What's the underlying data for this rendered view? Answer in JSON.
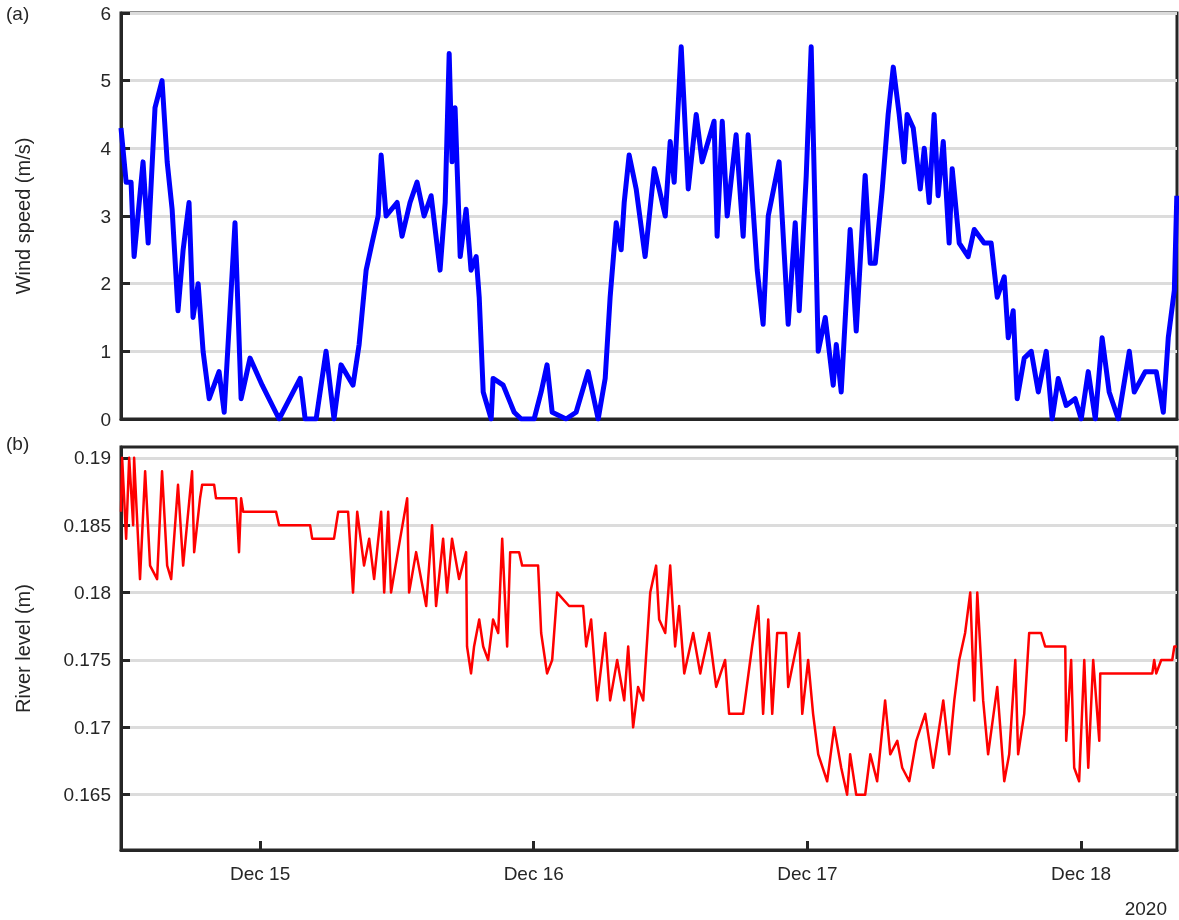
{
  "chart_data": [
    {
      "type": "line",
      "ylabel": "Wind speed (m/s)",
      "annotations": [
        "(a)"
      ],
      "color": "#0000ff",
      "grid": "y",
      "tick_labels": "y",
      "xlim": [
        "2020-12-14T11:48",
        "2020-12-18T08:25"
      ],
      "ylim": [
        0,
        6
      ],
      "yticks": [
        0,
        1,
        2,
        3,
        4,
        5,
        6
      ],
      "x": [
        "2020-12-14T11:48",
        "2020-12-14T12:15",
        "2020-12-14T12:41",
        "2020-12-14T12:57",
        "2020-12-14T13:44",
        "2020-12-14T14:11",
        "2020-12-14T14:47",
        "2020-12-14T15:24",
        "2020-12-14T15:51",
        "2020-12-14T16:17",
        "2020-12-14T16:48",
        "2020-12-14T17:15",
        "2020-12-14T17:46",
        "2020-12-14T18:07",
        "2020-12-14T18:34",
        "2020-12-14T19:00",
        "2020-12-14T19:32",
        "2020-12-14T20:24",
        "2020-12-14T20:51",
        "2020-12-14T21:48",
        "2020-12-14T22:20",
        "2020-12-14T23:07",
        "2020-12-15T00:11",
        "2020-12-15T01:40",
        "2020-12-15T02:54",
        "2020-12-15T03:31",
        "2020-12-15T03:57",
        "2020-12-15T04:55",
        "2020-12-15T05:47",
        "2020-12-15T06:29",
        "2020-12-15T07:06",
        "2020-12-15T08:09",
        "2020-12-15T08:41",
        "2020-12-15T09:18",
        "2020-12-15T09:49",
        "2020-12-15T10:21",
        "2020-12-15T10:37",
        "2020-12-15T11:03",
        "2020-12-15T12:01",
        "2020-12-15T12:27",
        "2020-12-15T13:09",
        "2020-12-15T13:46",
        "2020-12-15T14:23",
        "2020-12-15T15:00",
        "2020-12-15T15:47",
        "2020-12-15T16:14",
        "2020-12-15T16:35",
        "2020-12-15T16:50",
        "2020-12-15T17:06",
        "2020-12-15T17:33",
        "2020-12-15T18:04",
        "2020-12-15T18:30",
        "2020-12-15T18:57",
        "2020-12-15T19:13",
        "2020-12-15T19:34",
        "2020-12-15T20:16",
        "2020-12-15T20:26",
        "2020-12-15T21:19",
        "2020-12-15T22:17",
        "2020-12-15T22:54",
        "2020-12-16T00:02",
        "2020-12-16T00:39",
        "2020-12-16T01:10",
        "2020-12-16T01:37",
        "2020-12-16T02:50",
        "2020-12-16T03:43",
        "2020-12-16T04:46",
        "2020-12-16T05:39",
        "2020-12-16T06:16",
        "2020-12-16T06:42",
        "2020-12-16T07:14",
        "2020-12-16T07:40",
        "2020-12-16T07:56",
        "2020-12-16T08:22",
        "2020-12-16T08:59",
        "2020-12-16T09:46",
        "2020-12-16T10:34",
        "2020-12-16T11:00",
        "2020-12-16T11:32",
        "2020-12-16T11:58",
        "2020-12-16T12:19",
        "2020-12-16T12:56",
        "2020-12-16T13:33",
        "2020-12-16T14:15",
        "2020-12-16T14:46",
        "2020-12-16T15:49",
        "2020-12-16T16:05",
        "2020-12-16T16:32",
        "2020-12-16T16:58",
        "2020-12-16T17:45",
        "2020-12-16T18:22",
        "2020-12-16T18:48",
        "2020-12-16T19:36",
        "2020-12-16T20:07",
        "2020-12-16T20:34",
        "2020-12-16T21:31",
        "2020-12-16T22:19",
        "2020-12-16T22:56",
        "2020-12-16T23:17",
        "2020-12-16T23:54",
        "2020-12-17T00:20",
        "2020-12-17T00:41",
        "2020-12-17T00:57",
        "2020-12-17T01:34",
        "2020-12-17T02:16",
        "2020-12-17T02:32",
        "2020-12-17T02:58",
        "2020-12-17T03:45",
        "2020-12-17T04:17",
        "2020-12-17T05:04",
        "2020-12-17T05:31",
        "2020-12-17T05:57",
        "2020-12-17T06:34",
        "2020-12-17T07:05",
        "2020-12-17T07:32",
        "2020-12-17T08:03",
        "2020-12-17T08:29",
        "2020-12-17T08:45",
        "2020-12-17T09:17",
        "2020-12-17T09:54",
        "2020-12-17T10:15",
        "2020-12-17T10:41",
        "2020-12-17T11:07",
        "2020-12-17T11:28",
        "2020-12-17T11:55",
        "2020-12-17T12:26",
        "2020-12-17T12:42",
        "2020-12-17T13:19",
        "2020-12-17T14:06",
        "2020-12-17T14:38",
        "2020-12-17T15:30",
        "2020-12-17T16:07",
        "2020-12-17T16:39",
        "2020-12-17T17:16",
        "2020-12-17T17:37",
        "2020-12-17T18:03",
        "2020-12-17T18:24",
        "2020-12-17T19:01",
        "2020-12-17T19:38",
        "2020-12-17T20:15",
        "2020-12-17T20:57",
        "2020-12-17T21:28",
        "2020-12-17T22:00",
        "2020-12-17T22:42",
        "2020-12-17T23:29",
        "2020-12-18T00:01",
        "2020-12-18T00:38",
        "2020-12-18T01:15",
        "2020-12-18T01:51",
        "2020-12-18T02:28",
        "2020-12-18T03:16",
        "2020-12-18T04:14",
        "2020-12-18T04:40",
        "2020-12-18T05:38",
        "2020-12-18T06:36",
        "2020-12-18T07:13",
        "2020-12-18T07:39",
        "2020-12-18T08:11",
        "2020-12-18T08:24"
      ],
      "values": [
        4.3,
        3.5,
        3.5,
        2.4,
        3.8,
        2.6,
        4.6,
        5.0,
        3.8,
        3.1,
        1.6,
        2.5,
        3.2,
        1.5,
        2.0,
        1.0,
        0.3,
        0.7,
        0.1,
        2.9,
        0.3,
        0.9,
        0.5,
        0.0,
        0.4,
        0.6,
        0.0,
        0.0,
        1.0,
        0.0,
        0.8,
        0.5,
        1.1,
        2.2,
        2.6,
        3.0,
        3.9,
        3.0,
        3.2,
        2.7,
        3.2,
        3.5,
        3.0,
        3.3,
        2.2,
        3.2,
        5.4,
        3.8,
        4.6,
        2.4,
        3.1,
        2.2,
        2.4,
        1.8,
        0.4,
        0.0,
        0.6,
        0.5,
        0.1,
        0.0,
        0.0,
        0.4,
        0.8,
        0.1,
        0.0,
        0.1,
        0.7,
        0.0,
        0.6,
        1.8,
        2.9,
        2.5,
        3.2,
        3.9,
        3.4,
        2.4,
        3.7,
        3.4,
        3.0,
        4.1,
        3.5,
        5.5,
        3.4,
        4.5,
        3.8,
        4.4,
        2.7,
        4.4,
        3.0,
        4.2,
        2.7,
        4.2,
        2.2,
        1.4,
        3.0,
        3.8,
        1.4,
        2.9,
        1.6,
        3.6,
        5.5,
        3.0,
        1.0,
        1.5,
        0.5,
        1.1,
        0.4,
        2.8,
        1.3,
        3.6,
        2.3,
        2.3,
        3.4,
        4.5,
        5.2,
        4.5,
        3.8,
        4.5,
        4.3,
        3.4,
        4.0,
        3.2,
        4.5,
        3.3,
        4.1,
        2.6,
        3.7,
        2.6,
        2.4,
        2.8,
        2.6,
        2.6,
        1.8,
        2.1,
        1.2,
        1.6,
        0.3,
        0.9,
        1.0,
        0.4,
        1.0,
        0.0,
        0.6,
        0.2,
        0.3,
        0.0,
        0.7,
        0.0,
        1.2,
        0.4,
        0.0,
        1.0,
        0.4,
        0.7,
        0.7,
        0.1,
        1.2,
        1.9,
        3.3
      ]
    },
    {
      "type": "line",
      "ylabel": "River level (m)",
      "annotations": [
        "(b)",
        "2020"
      ],
      "color": "#ff0000",
      "grid": "y",
      "xlim": [
        "2020-12-14T11:48",
        "2020-12-18T08:25"
      ],
      "xticks": [
        {
          "value": "2020-12-15",
          "label": "Dec 15"
        },
        {
          "value": "2020-12-16",
          "label": "Dec 16"
        },
        {
          "value": "2020-12-17",
          "label": "Dec 17"
        },
        {
          "value": "2020-12-18",
          "label": "Dec 18"
        }
      ],
      "ylim": [
        0.1609,
        0.1908
      ],
      "yticks": [
        0.165,
        0.17,
        0.175,
        0.18,
        0.185,
        0.19
      ],
      "x": [
        "2020-12-14T11:48",
        "2020-12-14T11:54",
        "2020-12-14T12:15",
        "2020-12-14T12:31",
        "2020-12-14T12:52",
        "2020-12-14T12:57",
        "2020-12-14T13:28",
        "2020-12-14T13:55",
        "2020-12-14T14:21",
        "2020-12-14T14:58",
        "2020-12-14T15:24",
        "2020-12-14T15:51",
        "2020-12-14T16:12",
        "2020-12-14T16:48",
        "2020-12-14T17:15",
        "2020-12-14T18:02",
        "2020-12-14T18:13",
        "2020-12-14T18:44",
        "2020-12-14T18:55",
        "2020-12-14T19:58",
        "2020-12-14T20:08",
        "2020-12-14T21:54",
        "2020-12-14T22:09",
        "2020-12-14T22:20",
        "2020-12-14T22:31",
        "2020-12-15T01:24",
        "2020-12-15T01:40",
        "2020-12-15T04:23",
        "2020-12-15T04:34",
        "2020-12-15T06:29",
        "2020-12-15T06:51",
        "2020-12-15T07:43",
        "2020-12-15T08:09",
        "2020-12-15T08:31",
        "2020-12-15T09:07",
        "2020-12-15T09:34",
        "2020-12-15T10:00",
        "2020-12-15T10:37",
        "2020-12-15T10:53",
        "2020-12-15T11:14",
        "2020-12-15T11:29",
        "2020-12-15T12:17",
        "2020-12-15T12:54",
        "2020-12-15T13:04",
        "2020-12-15T13:41",
        "2020-12-15T14:34",
        "2020-12-15T15:05",
        "2020-12-15T15:26",
        "2020-12-15T16:03",
        "2020-12-15T16:24",
        "2020-12-15T16:50",
        "2020-12-15T17:27",
        "2020-12-15T18:04",
        "2020-12-15T18:09",
        "2020-12-15T18:30",
        "2020-12-15T18:46",
        "2020-12-15T19:13",
        "2020-12-15T19:34",
        "2020-12-15T20:00",
        "2020-12-15T20:26",
        "2020-12-15T20:53",
        "2020-12-15T21:14",
        "2020-12-15T21:40",
        "2020-12-15T21:56",
        "2020-12-15T22:43",
        "2020-12-15T22:59",
        "2020-12-15T23:30",
        "2020-12-16T00:23",
        "2020-12-16T00:39",
        "2020-12-16T01:10",
        "2020-12-16T01:37",
        "2020-12-16T02:03",
        "2020-12-16T03:06",
        "2020-12-16T04:20",
        "2020-12-16T04:36",
        "2020-12-16T05:02",
        "2020-12-16T05:34",
        "2020-12-16T06:16",
        "2020-12-16T06:42",
        "2020-12-16T07:19",
        "2020-12-16T07:56",
        "2020-12-16T08:17",
        "2020-12-16T08:43",
        "2020-12-16T09:09",
        "2020-12-16T09:36",
        "2020-12-16T10:13",
        "2020-12-16T10:44",
        "2020-12-16T11:00",
        "2020-12-16T11:32",
        "2020-12-16T11:58",
        "2020-12-16T12:24",
        "2020-12-16T12:45",
        "2020-12-16T13:12",
        "2020-12-16T13:59",
        "2020-12-16T14:36",
        "2020-12-16T15:23",
        "2020-12-16T16:00",
        "2020-12-16T16:47",
        "2020-12-16T17:08",
        "2020-12-16T18:22",
        "2020-12-16T19:09",
        "2020-12-16T19:41",
        "2020-12-16T20:07",
        "2020-12-16T20:34",
        "2020-12-16T20:55",
        "2020-12-16T21:21",
        "2020-12-16T22:08",
        "2020-12-16T22:19",
        "2020-12-16T23:17",
        "2020-12-16T23:33",
        "2020-12-17T00:04",
        "2020-12-17T00:30",
        "2020-12-17T00:57",
        "2020-12-17T01:44",
        "2020-12-17T02:21",
        "2020-12-17T02:58",
        "2020-12-17T03:29",
        "2020-12-17T03:45",
        "2020-12-17T04:17",
        "2020-12-17T05:04",
        "2020-12-17T05:31",
        "2020-12-17T06:07",
        "2020-12-17T06:49",
        "2020-12-17T07:16",
        "2020-12-17T07:53",
        "2020-12-17T08:19",
        "2020-12-17T08:56",
        "2020-12-17T09:33",
        "2020-12-17T10:20",
        "2020-12-17T11:02",
        "2020-12-17T11:55",
        "2020-12-17T12:26",
        "2020-12-17T12:53",
        "2020-12-17T13:19",
        "2020-12-17T13:50",
        "2020-12-17T14:17",
        "2020-12-17T14:38",
        "2020-12-17T14:54",
        "2020-12-17T15:25",
        "2020-12-17T15:51",
        "2020-12-17T16:39",
        "2020-12-17T17:16",
        "2020-12-17T17:42",
        "2020-12-17T18:14",
        "2020-12-17T18:29",
        "2020-12-17T19:01",
        "2020-12-17T19:27",
        "2020-12-17T20:30",
        "2020-12-17T20:51",
        "2020-12-17T22:37",
        "2020-12-17T22:42",
        "2020-12-17T23:08",
        "2020-12-17T23:24",
        "2020-12-17T23:50",
        "2020-12-18T00:17",
        "2020-12-18T00:38",
        "2020-12-18T01:04",
        "2020-12-18T01:36",
        "2020-12-18T01:41",
        "2020-12-18T06:15",
        "2020-12-18T06:25",
        "2020-12-18T06:36",
        "2020-12-18T07:02",
        "2020-12-18T08:00",
        "2020-12-18T08:11",
        "2020-12-18T08:24"
      ],
      "values": [
        0.186,
        0.19,
        0.184,
        0.19,
        0.185,
        0.19,
        0.181,
        0.189,
        0.182,
        0.181,
        0.189,
        0.182,
        0.181,
        0.188,
        0.182,
        0.189,
        0.183,
        0.187,
        0.188,
        0.188,
        0.187,
        0.187,
        0.183,
        0.187,
        0.186,
        0.186,
        0.185,
        0.185,
        0.184,
        0.184,
        0.186,
        0.186,
        0.18,
        0.186,
        0.182,
        0.184,
        0.181,
        0.186,
        0.18,
        0.186,
        0.18,
        0.184,
        0.187,
        0.18,
        0.183,
        0.179,
        0.185,
        0.179,
        0.184,
        0.18,
        0.184,
        0.181,
        0.183,
        0.176,
        0.174,
        0.176,
        0.178,
        0.176,
        0.175,
        0.178,
        0.177,
        0.184,
        0.176,
        0.183,
        0.183,
        0.182,
        0.182,
        0.182,
        0.177,
        0.174,
        0.175,
        0.18,
        0.179,
        0.179,
        0.176,
        0.178,
        0.172,
        0.177,
        0.172,
        0.175,
        0.172,
        0.176,
        0.17,
        0.173,
        0.172,
        0.18,
        0.182,
        0.178,
        0.177,
        0.182,
        0.176,
        0.179,
        0.174,
        0.177,
        0.174,
        0.177,
        0.173,
        0.175,
        0.171,
        0.171,
        0.176,
        0.179,
        0.171,
        0.178,
        0.171,
        0.177,
        0.177,
        0.173,
        0.177,
        0.171,
        0.175,
        0.171,
        0.168,
        0.166,
        0.17,
        0.167,
        0.165,
        0.168,
        0.165,
        0.165,
        0.168,
        0.166,
        0.172,
        0.168,
        0.169,
        0.167,
        0.166,
        0.169,
        0.171,
        0.167,
        0.172,
        0.168,
        0.172,
        0.175,
        0.177,
        0.18,
        0.172,
        0.18,
        0.172,
        0.168,
        0.173,
        0.166,
        0.168,
        0.175,
        0.168,
        0.171,
        0.177,
        0.177,
        0.176,
        0.176,
        0.169,
        0.175,
        0.167,
        0.166,
        0.175,
        0.167,
        0.175,
        0.169,
        0.174,
        0.174,
        0.175,
        0.174,
        0.175,
        0.175,
        0.176,
        0.176
      ]
    }
  ]
}
